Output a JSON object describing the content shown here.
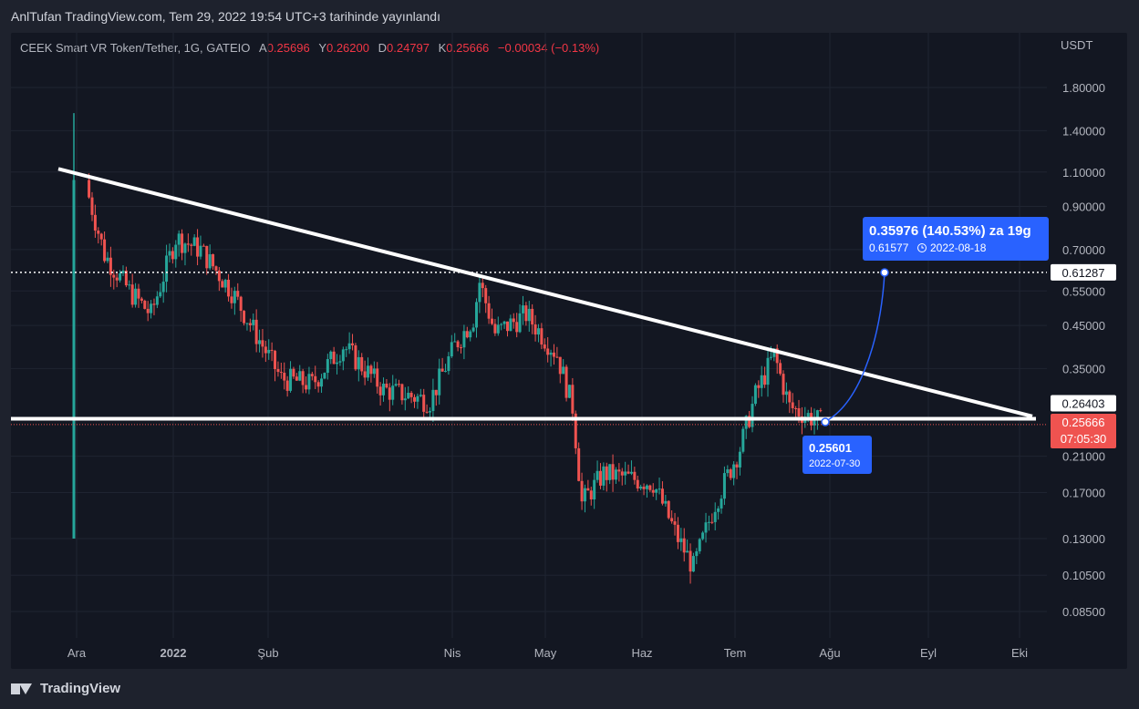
{
  "header": {
    "published": "AnlTufan TradingView.com, Tem 29, 2022 19:54 UTC+3 tarihinde yayınlandı"
  },
  "legend": {
    "symbol": "CEEK Smart VR Token/Tether, 1G, GATEIO",
    "open_label": "A",
    "open": "0.25696",
    "high_label": "Y",
    "high": "0.26200",
    "low_label": "D",
    "low": "0.24797",
    "close_label": "K",
    "close": "0.25666",
    "change": "−0.00034 (−0.13%)"
  },
  "footer": {
    "brand": "TradingView"
  },
  "colors": {
    "up": "#26a69a",
    "down": "#ef5350",
    "bg": "#131722",
    "accent": "#2962ff"
  },
  "chart_data": {
    "type": "candlestick",
    "scale": "log",
    "currency": "USDT",
    "y_ticks": [
      "1.80000",
      "1.40000",
      "1.10000",
      "0.90000",
      "0.70000",
      "0.55000",
      "0.45000",
      "0.35000",
      "0.21000",
      "0.17000",
      "0.13000",
      "0.10500",
      "0.08500"
    ],
    "x_ticks": [
      "Ara",
      "2022",
      "Şub",
      "Nis",
      "May",
      "Haz",
      "Tem",
      "Ağu",
      "Eyl",
      "Eki"
    ],
    "price_labels": {
      "target": "0.61287",
      "support": "0.26403",
      "last": "0.25666",
      "countdown": "07:05:30"
    },
    "annotations": {
      "projection_title": "0.35976 (140.53%) za 19g",
      "projection_price": "0.61577",
      "projection_date": "2022-08-18",
      "cursor_price": "0.25601",
      "cursor_date": "2022-07-30"
    },
    "anchors": [
      {
        "date": "2021-12-05",
        "close": 0.95
      },
      {
        "date": "2021-12-10",
        "close": 0.68
      },
      {
        "date": "2021-12-18",
        "close": 0.55
      },
      {
        "date": "2021-12-25",
        "close": 0.48
      },
      {
        "date": "2022-01-02",
        "close": 0.75
      },
      {
        "date": "2022-01-10",
        "close": 0.7
      },
      {
        "date": "2022-01-20",
        "close": 0.55
      },
      {
        "date": "2022-01-30",
        "close": 0.4
      },
      {
        "date": "2022-02-05",
        "close": 0.33
      },
      {
        "date": "2022-02-15",
        "close": 0.32
      },
      {
        "date": "2022-02-25",
        "close": 0.4
      },
      {
        "date": "2022-03-10",
        "close": 0.31
      },
      {
        "date": "2022-03-25",
        "close": 0.29
      },
      {
        "date": "2022-04-02",
        "close": 0.4
      },
      {
        "date": "2022-04-08",
        "close": 0.47
      },
      {
        "date": "2022-04-10",
        "close": 0.58
      },
      {
        "date": "2022-04-15",
        "close": 0.43
      },
      {
        "date": "2022-04-25",
        "close": 0.48
      },
      {
        "date": "2022-05-05",
        "close": 0.38
      },
      {
        "date": "2022-05-10",
        "close": 0.28
      },
      {
        "date": "2022-05-13",
        "close": 0.16
      },
      {
        "date": "2022-05-20",
        "close": 0.19
      },
      {
        "date": "2022-06-05",
        "close": 0.18
      },
      {
        "date": "2022-06-13",
        "close": 0.13
      },
      {
        "date": "2022-06-18",
        "close": 0.11
      },
      {
        "date": "2022-06-25",
        "close": 0.16
      },
      {
        "date": "2022-07-03",
        "close": 0.22
      },
      {
        "date": "2022-07-08",
        "close": 0.3
      },
      {
        "date": "2022-07-14",
        "close": 0.38
      },
      {
        "date": "2022-07-19",
        "close": 0.28
      },
      {
        "date": "2022-07-29",
        "close": 0.2567
      }
    ],
    "trendline_descending": [
      {
        "date": "2021-11-30",
        "price": 1.12
      },
      {
        "date": "2022-10-10",
        "price": 0.265
      }
    ],
    "support_level": 0.264,
    "target_level": 0.61287
  }
}
